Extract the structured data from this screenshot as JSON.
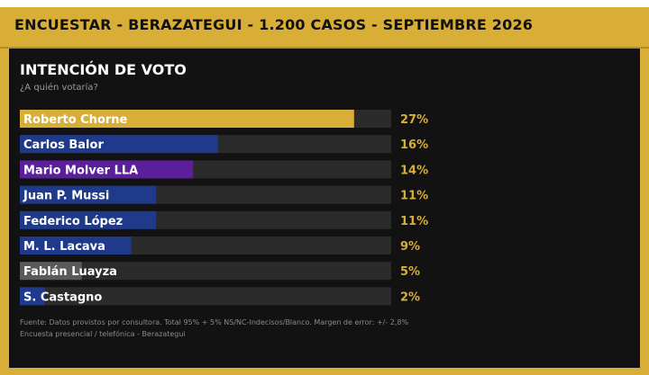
{
  "header": {
    "title": "ENCUESTAR - BERAZATEGUI - 1.200 CASOS - SEPTIEMBRE 2026"
  },
  "chart_data": {
    "type": "bar",
    "orientation": "horizontal",
    "title": "INTENCIÓN DE VOTO",
    "subtitle": "¿A quién votaría?",
    "categories": [
      "Roberto Chorne",
      "Carlos Balor",
      "Mario Molver LLA",
      "Juan P. Mussi",
      "Federico López",
      "M. L. Lacava",
      "Fablán Luayza",
      "S. Castagno"
    ],
    "values": [
      27,
      16,
      14,
      11,
      11,
      9,
      5,
      2
    ],
    "value_labels": [
      "27%",
      "16%",
      "14%",
      "11%",
      "11%",
      "9%",
      "5%",
      "2%"
    ],
    "xlim": [
      0,
      30
    ],
    "colors": [
      "#d9ae37",
      "#1f3a8a",
      "#5b1f9b",
      "#1f3a8a",
      "#1f3a8a",
      "#1f3a8a",
      "#5a5a5a",
      "#1f3a8a"
    ],
    "track_color": "#2b2b2b",
    "value_label_color": "#d9ae37",
    "grid": false,
    "legend": "none"
  },
  "footnotes": [
    "Fuente: Datos provistos por consultora. Total 95% + 5% NS/NC-Indecisos/Blanco. Margen de error: +/- 2,8%",
    "Encuesta presencial / telefónica - Berazategui"
  ]
}
